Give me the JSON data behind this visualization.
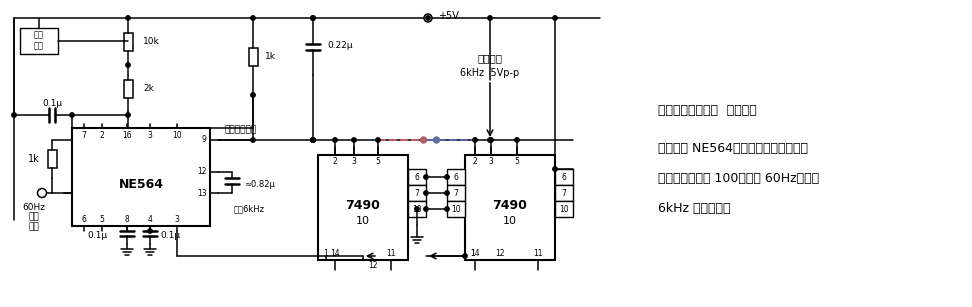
{
  "bg_color": "#ffffff",
  "line_color": "#000000",
  "fig_width": 9.72,
  "fig_height": 3.07,
  "dpi": 100,
  "title_text": "带计数器的锁相环  此电路利",
  "desc_line2": "用锁相环 NE564，插人两个十进制计数",
  "desc_line3": "器，倍频系数为 100。输人 60Hz，产生",
  "desc_line4": "6kHz 方波输出。",
  "ne564_label": "NE564",
  "ic7490_1_label": "7490",
  "ic7490_2_label": "7490",
  "label_10": "10",
  "label_10k": "10k",
  "label_2k": "2k",
  "label_1k_top": "1k",
  "label_1k_left": "1k",
  "label_01u_1": "0.1μ",
  "label_01u_2": "0.1μ",
  "label_01u_3": "0.1μ",
  "label_022u": "0.22μ",
  "label_082u": "≈0.82μ",
  "label_vcc": "+5V",
  "label_freq_adj": "频率调节电容",
  "label_output": "输出方波",
  "label_output2": "6kHz  5Vp-p",
  "label_for6k": "对于6kHz",
  "label_60hz": "60Hz",
  "label_signal": "信号",
  "label_input": "输人",
  "label_freq_tune": "频率",
  "label_tune2": "调节"
}
